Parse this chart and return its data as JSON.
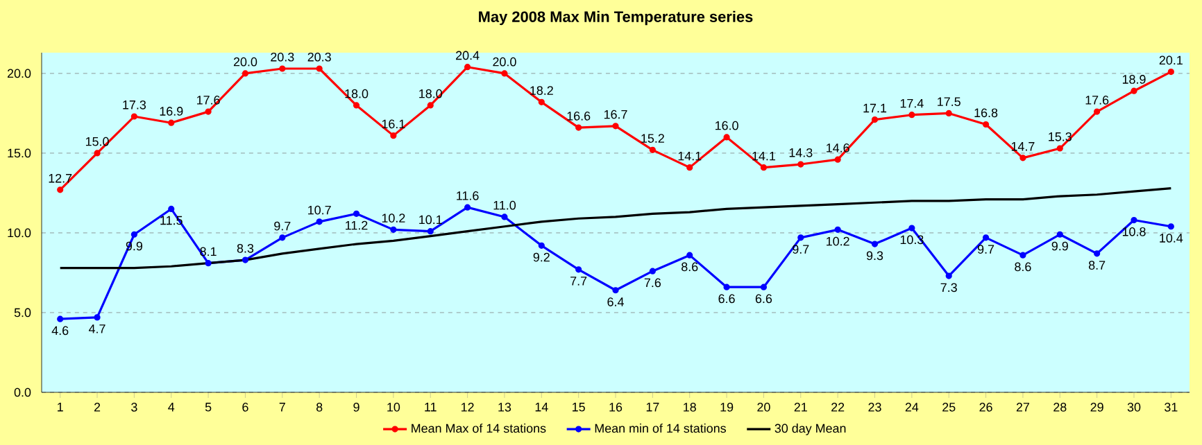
{
  "chart_data": {
    "type": "line",
    "title": "May 2008 Max Min Temperature series",
    "categories": [
      "1",
      "2",
      "3",
      "4",
      "5",
      "6",
      "7",
      "8",
      "9",
      "10",
      "11",
      "12",
      "13",
      "14",
      "15",
      "16",
      "17",
      "18",
      "19",
      "20",
      "21",
      "22",
      "23",
      "24",
      "25",
      "26",
      "27",
      "28",
      "29",
      "30",
      "31"
    ],
    "series": [
      {
        "name": "Mean Max of 14 stations",
        "color": "#ff0000",
        "marker": "circle",
        "values": [
          12.7,
          15.0,
          17.3,
          16.9,
          17.6,
          20.0,
          20.3,
          20.3,
          18.0,
          16.1,
          18.0,
          20.4,
          20.0,
          18.2,
          16.6,
          16.7,
          15.2,
          14.1,
          16.0,
          14.1,
          14.3,
          14.6,
          17.1,
          17.4,
          17.5,
          16.8,
          14.7,
          15.3,
          17.6,
          18.9,
          20.1
        ],
        "value_labels": [
          "12.7",
          "15.0",
          "17.3",
          "16.9",
          "17.6",
          "20.0",
          "20.3",
          "20.3",
          "18.0",
          "16.1",
          "18.0",
          "20.4",
          "20.0",
          "18.2",
          "16.6",
          "16.7",
          "15.2",
          "14.1",
          "16.0",
          "14.1",
          "14.3",
          "14.6",
          "17.1",
          "17.4",
          "17.5",
          "16.8",
          "14.7",
          "15.3",
          "17.6",
          "18.9",
          "20.1"
        ]
      },
      {
        "name": "Mean min of 14 stations",
        "color": "#0000ff",
        "marker": "circle",
        "values": [
          4.6,
          4.7,
          9.9,
          11.5,
          8.1,
          8.3,
          9.7,
          10.7,
          11.2,
          10.2,
          10.1,
          11.6,
          11.0,
          9.2,
          7.7,
          6.4,
          7.6,
          8.6,
          6.6,
          6.6,
          9.7,
          10.2,
          9.3,
          10.3,
          7.3,
          9.7,
          8.6,
          9.9,
          8.7,
          10.8,
          10.4
        ],
        "value_labels": [
          "4.6",
          "4.7",
          "9.9",
          "11.5",
          "8.1",
          "8.3",
          "9.7",
          "10.7",
          "11.2",
          "10.2",
          "10.1",
          "11.6",
          "11.0",
          "9.2",
          "7.7",
          "6.4",
          "7.6",
          "8.6",
          "6.6",
          "6.6",
          "9.7",
          "10.2",
          "9.3",
          "10.3",
          "7.3",
          "9.7",
          "8.6",
          "9.9",
          "8.7",
          "10.8",
          "10.4"
        ]
      },
      {
        "name": "30 day Mean",
        "color": "#000000",
        "marker": "none",
        "values": [
          7.8,
          7.8,
          7.8,
          7.9,
          8.1,
          8.3,
          8.7,
          9.0,
          9.3,
          9.5,
          9.8,
          10.1,
          10.4,
          10.7,
          10.9,
          11.0,
          11.2,
          11.3,
          11.5,
          11.6,
          11.7,
          11.8,
          11.9,
          12.0,
          12.0,
          12.1,
          12.1,
          12.3,
          12.4,
          12.6,
          12.8
        ]
      }
    ],
    "ylim": [
      0,
      21.3
    ],
    "yticks": [
      {
        "value": 0,
        "label": "0.0"
      },
      {
        "value": 5,
        "label": "5.0"
      },
      {
        "value": 10,
        "label": "10.0"
      },
      {
        "value": 15,
        "label": "15.0"
      },
      {
        "value": 20,
        "label": "20.0"
      }
    ],
    "grid": "y",
    "legend": "bottom",
    "line_style": "solid"
  }
}
